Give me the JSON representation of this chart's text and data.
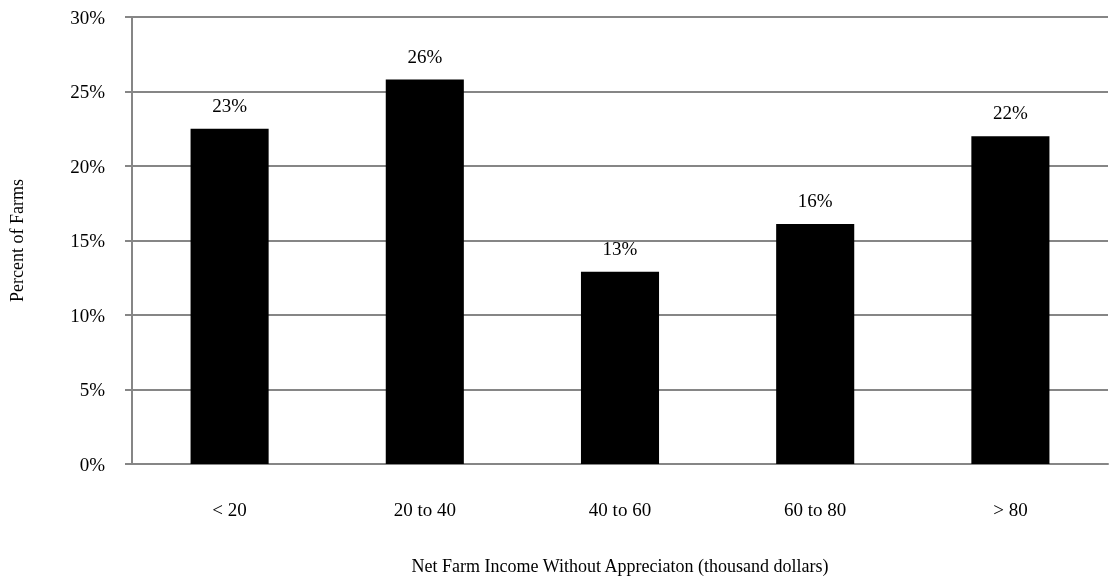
{
  "chart_data": {
    "type": "bar",
    "xlabel": "Net Farm Income Without Appreciaton (thousand dollars)",
    "ylabel": "Percent of Farms",
    "categories": [
      "< 20",
      "20 to 40",
      "40 to 60",
      "60 to 80",
      "> 80"
    ],
    "values": [
      22.5,
      25.8,
      12.9,
      16.1,
      22.0
    ],
    "color": "#000000",
    "value_labels": [
      "23%",
      "26%",
      "13%",
      "16%",
      "22%"
    ],
    "ylim": [
      0,
      30
    ],
    "yticks": [
      {
        "value": 0,
        "label": "0%"
      },
      {
        "value": 5,
        "label": "5%"
      },
      {
        "value": 10,
        "label": "10%"
      },
      {
        "value": 15,
        "label": "15%"
      },
      {
        "value": 20,
        "label": "20%"
      },
      {
        "value": 25,
        "label": "25%"
      },
      {
        "value": 30,
        "label": "30%"
      }
    ],
    "grid": "y"
  }
}
